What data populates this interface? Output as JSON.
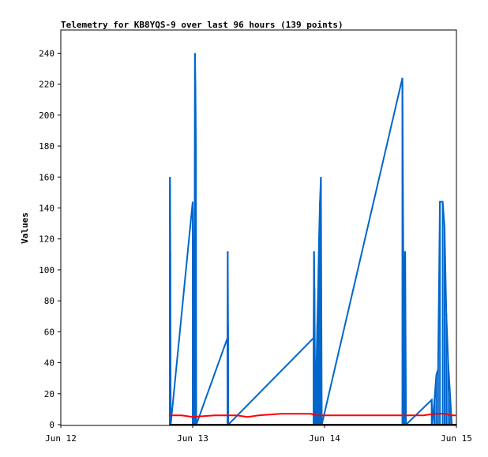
{
  "chart_data": {
    "type": "line",
    "title": "Telemetry for KB8YQS-9 over last 96 hours (139 points)",
    "xlabel": "",
    "ylabel": "Values",
    "xlim": [
      "Jun 12",
      "Jun 15"
    ],
    "ylim": [
      0,
      255
    ],
    "x_ticks": [
      "Jun 12",
      "Jun 13",
      "Jun 14",
      "Jun 15"
    ],
    "y_ticks": [
      0,
      20,
      40,
      60,
      80,
      100,
      120,
      140,
      160,
      180,
      200,
      220,
      240
    ],
    "grid": false,
    "legend": "none",
    "series": [
      {
        "color": "#0066cc",
        "style": "spikes",
        "points": [
          [
            "Jun 12 19:50",
            64
          ],
          [
            "Jun 12 19:52",
            160
          ],
          [
            "Jun 12 19:54",
            152
          ],
          [
            "Jun 12 19:56",
            112
          ],
          [
            "Jun 12 19:58",
            56
          ],
          [
            "Jun 12 20:00",
            0
          ],
          [
            "Jun 13 00:00",
            144
          ],
          [
            "Jun 13 00:10",
            72
          ],
          [
            "Jun 13 00:20",
            80
          ],
          [
            "Jun 13 00:25",
            240
          ],
          [
            "Jun 13 00:30",
            220
          ],
          [
            "Jun 13 00:35",
            180
          ],
          [
            "Jun 13 00:40",
            0
          ],
          [
            "Jun 13 06:20",
            56
          ],
          [
            "Jun 13 06:23",
            112
          ],
          [
            "Jun 13 06:26",
            64
          ],
          [
            "Jun 13 06:29",
            0
          ],
          [
            "Jun 13 22:00",
            56
          ],
          [
            "Jun 13 22:05",
            112
          ],
          [
            "Jun 13 22:10",
            88
          ],
          [
            "Jun 13 22:20",
            0
          ],
          [
            "Jun 13 22:30",
            32
          ],
          [
            "Jun 13 22:40",
            64
          ],
          [
            "Jun 13 22:50",
            88
          ],
          [
            "Jun 13 23:00",
            120
          ],
          [
            "Jun 13 23:10",
            144
          ],
          [
            "Jun 13 23:20",
            160
          ],
          [
            "Jun 13 23:30",
            0
          ],
          [
            "Jun 14 14:10",
            224
          ],
          [
            "Jun 14 14:20",
            112
          ],
          [
            "Jun 14 14:30",
            84
          ],
          [
            "Jun 14 14:40",
            112
          ],
          [
            "Jun 14 14:50",
            0
          ],
          [
            "Jun 14 19:30",
            16
          ],
          [
            "Jun 14 19:35",
            0
          ],
          [
            "Jun 14 20:00",
            16
          ],
          [
            "Jun 14 20:20",
            32
          ],
          [
            "Jun 14 20:40",
            36
          ],
          [
            "Jun 14 21:00",
            144
          ],
          [
            "Jun 14 21:30",
            144
          ],
          [
            "Jun 14 21:50",
            128
          ],
          [
            "Jun 14 22:10",
            72
          ],
          [
            "Jun 14 22:30",
            40
          ],
          [
            "Jun 14 22:50",
            20
          ],
          [
            "Jun 14 23:10",
            0
          ]
        ]
      },
      {
        "color": "#ff0000",
        "style": "line",
        "points": [
          [
            "Jun 12 19:50",
            6
          ],
          [
            "Jun 12 22:00",
            6
          ],
          [
            "Jun 13 00:00",
            5
          ],
          [
            "Jun 13 04:00",
            6
          ],
          [
            "Jun 13 08:00",
            6
          ],
          [
            "Jun 13 10:00",
            5
          ],
          [
            "Jun 13 12:00",
            6
          ],
          [
            "Jun 13 16:00",
            7
          ],
          [
            "Jun 13 21:30",
            7
          ],
          [
            "Jun 13 22:30",
            6
          ],
          [
            "Jun 14 06:00",
            6
          ],
          [
            "Jun 14 18:00",
            6
          ],
          [
            "Jun 14 20:00",
            7
          ],
          [
            "Jun 14 22:00",
            7
          ],
          [
            "Jun 14 23:00",
            6
          ],
          [
            "Jun 15 00:00",
            6
          ]
        ]
      },
      {
        "color": "#000000",
        "style": "line",
        "points": [
          [
            "Jun 12 19:50",
            0
          ],
          [
            "Jun 15 00:00",
            0
          ]
        ]
      }
    ]
  }
}
